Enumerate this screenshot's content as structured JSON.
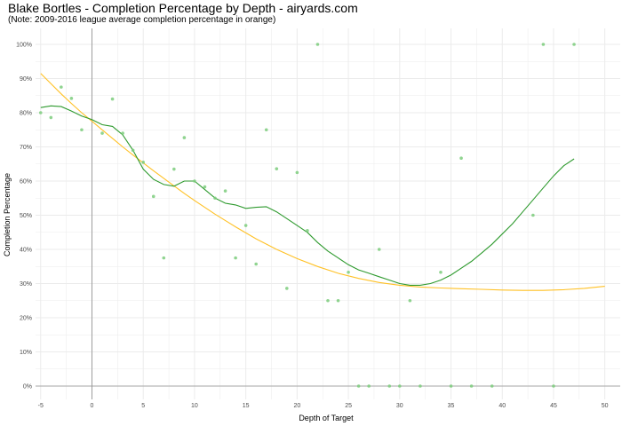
{
  "chart_data": {
    "type": "scatter",
    "title": "Blake Bortles - Completion Percentage by Depth - airyards.com",
    "subtitle": "(Note: 2009-2016 league average completion percentage in orange)",
    "xlabel": "Depth of Target",
    "ylabel": "Completion Percentage",
    "xlim": [
      -5.5,
      51.5
    ],
    "ylim": [
      0,
      100
    ],
    "x_ticks": [
      -5,
      0,
      5,
      10,
      15,
      20,
      25,
      30,
      35,
      40,
      45,
      50
    ],
    "y_ticks": [
      0,
      10,
      20,
      30,
      40,
      50,
      60,
      70,
      80,
      90,
      100
    ],
    "y_tick_labels": [
      "0%",
      "10%",
      "20%",
      "30%",
      "40%",
      "50%",
      "60%",
      "70%",
      "80%",
      "90%",
      "100%"
    ],
    "grid": true,
    "legend": "none",
    "colors": {
      "points": "#7ccd7c",
      "player_fit": "#2e9a2e",
      "league_fit": "#ffc125",
      "grid": "#ebebeb",
      "zero_line": "#9e9e9e"
    },
    "points": [
      {
        "x": -5,
        "y": 80
      },
      {
        "x": -4,
        "y": 78.6
      },
      {
        "x": -3,
        "y": 87.5
      },
      {
        "x": -2,
        "y": 84.2
      },
      {
        "x": -1,
        "y": 75
      },
      {
        "x": 1,
        "y": 74
      },
      {
        "x": 2,
        "y": 84
      },
      {
        "x": 3,
        "y": 74
      },
      {
        "x": 4,
        "y": 69
      },
      {
        "x": 5,
        "y": 65.5
      },
      {
        "x": 6,
        "y": 55.5
      },
      {
        "x": 7,
        "y": 37.5
      },
      {
        "x": 8,
        "y": 63.5
      },
      {
        "x": 9,
        "y": 72.7
      },
      {
        "x": 10,
        "y": 60
      },
      {
        "x": 11,
        "y": 58.3
      },
      {
        "x": 12,
        "y": 55
      },
      {
        "x": 13,
        "y": 57.1
      },
      {
        "x": 14,
        "y": 37.5
      },
      {
        "x": 15,
        "y": 47
      },
      {
        "x": 16,
        "y": 35.7
      },
      {
        "x": 17,
        "y": 75
      },
      {
        "x": 18,
        "y": 63.6
      },
      {
        "x": 19,
        "y": 28.6
      },
      {
        "x": 20,
        "y": 62.5
      },
      {
        "x": 21,
        "y": 45.5
      },
      {
        "x": 22,
        "y": 100
      },
      {
        "x": 23,
        "y": 25
      },
      {
        "x": 24,
        "y": 25
      },
      {
        "x": 25,
        "y": 33.3
      },
      {
        "x": 26,
        "y": 0
      },
      {
        "x": 27,
        "y": 0
      },
      {
        "x": 28,
        "y": 40
      },
      {
        "x": 29,
        "y": 0
      },
      {
        "x": 30,
        "y": 0
      },
      {
        "x": 31,
        "y": 25
      },
      {
        "x": 32,
        "y": 0
      },
      {
        "x": 34,
        "y": 33.3
      },
      {
        "x": 35,
        "y": 0
      },
      {
        "x": 36,
        "y": 66.7
      },
      {
        "x": 37,
        "y": 0
      },
      {
        "x": 39,
        "y": 0
      },
      {
        "x": 43,
        "y": 50
      },
      {
        "x": 44,
        "y": 100
      },
      {
        "x": 45,
        "y": 0
      },
      {
        "x": 47,
        "y": 100
      }
    ],
    "player_fit": [
      [
        -5,
        81.5
      ],
      [
        -4,
        82
      ],
      [
        -3,
        81.8
      ],
      [
        -2,
        80.5
      ],
      [
        -1,
        79
      ],
      [
        0,
        78
      ],
      [
        1,
        76.5
      ],
      [
        2,
        76
      ],
      [
        3,
        73.5
      ],
      [
        4,
        69
      ],
      [
        5,
        63.5
      ],
      [
        6,
        60.5
      ],
      [
        7,
        59
      ],
      [
        8,
        58.5
      ],
      [
        9,
        60
      ],
      [
        10,
        60
      ],
      [
        11,
        57.5
      ],
      [
        12,
        55
      ],
      [
        13,
        53.5
      ],
      [
        14,
        53
      ],
      [
        15,
        52
      ],
      [
        16,
        52.3
      ],
      [
        17,
        52.5
      ],
      [
        18,
        51
      ],
      [
        19,
        49
      ],
      [
        20,
        47
      ],
      [
        21,
        45
      ],
      [
        22,
        42
      ],
      [
        23,
        39.5
      ],
      [
        24,
        37.5
      ],
      [
        25,
        35.5
      ],
      [
        26,
        34
      ],
      [
        27,
        33
      ],
      [
        28,
        32
      ],
      [
        29,
        31
      ],
      [
        30,
        30
      ],
      [
        31,
        29.5
      ],
      [
        32,
        29.5
      ],
      [
        33,
        30
      ],
      [
        34,
        31
      ],
      [
        35,
        32.5
      ],
      [
        36,
        34.5
      ],
      [
        37,
        36.5
      ],
      [
        38,
        39
      ],
      [
        39,
        41.5
      ],
      [
        40,
        44.5
      ],
      [
        41,
        47.5
      ],
      [
        42,
        51
      ],
      [
        43,
        54.5
      ],
      [
        44,
        58
      ],
      [
        45,
        61.5
      ],
      [
        46,
        64.5
      ],
      [
        47,
        66.5
      ]
    ],
    "league_fit": [
      [
        -5,
        91.5
      ],
      [
        -4,
        88.5
      ],
      [
        -3,
        85.5
      ],
      [
        -2,
        82.7
      ],
      [
        -1,
        80
      ],
      [
        0,
        77.5
      ],
      [
        1,
        75
      ],
      [
        2,
        72.5
      ],
      [
        3,
        70
      ],
      [
        4,
        67.6
      ],
      [
        5,
        65.3
      ],
      [
        6,
        63
      ],
      [
        7,
        60.8
      ],
      [
        8,
        58.6
      ],
      [
        9,
        56.4
      ],
      [
        10,
        54.3
      ],
      [
        12,
        50.3
      ],
      [
        14,
        46.6
      ],
      [
        16,
        43.1
      ],
      [
        18,
        40
      ],
      [
        20,
        37.3
      ],
      [
        22,
        35
      ],
      [
        24,
        33
      ],
      [
        26,
        31.5
      ],
      [
        28,
        30.3
      ],
      [
        30,
        29.5
      ],
      [
        32,
        29
      ],
      [
        34,
        28.7
      ],
      [
        36,
        28.5
      ],
      [
        38,
        28.3
      ],
      [
        40,
        28.1
      ],
      [
        42,
        28
      ],
      [
        44,
        28
      ],
      [
        46,
        28.2
      ],
      [
        48,
        28.6
      ],
      [
        50,
        29.2
      ]
    ]
  }
}
